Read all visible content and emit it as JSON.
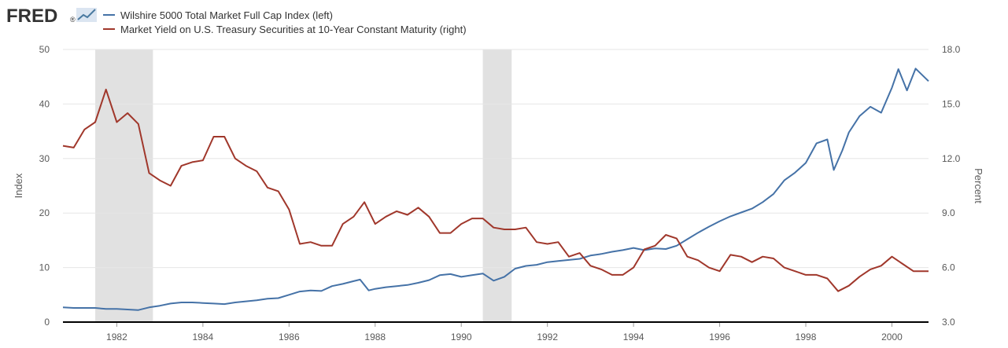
{
  "logo": {
    "text": "FRED",
    "suffix": "®"
  },
  "chart_data": {
    "type": "line",
    "title": "",
    "x_range": [
      1980.75,
      2000.85
    ],
    "x_ticks": [
      "1982",
      "1984",
      "1986",
      "1988",
      "1990",
      "1992",
      "1994",
      "1996",
      "1998",
      "2000"
    ],
    "y_left": {
      "label": "Index",
      "range": [
        0,
        50
      ],
      "ticks": [
        "0",
        "10",
        "20",
        "30",
        "40",
        "50"
      ]
    },
    "y_right": {
      "label": "Percent",
      "range": [
        3.0,
        18.0
      ],
      "ticks": [
        "3.0",
        "6.0",
        "9.0",
        "12.0",
        "15.0",
        "18.0"
      ]
    },
    "grid": true,
    "legend_position": "top-left",
    "recessions": [
      [
        1981.5,
        1982.84
      ],
      [
        1990.5,
        1991.17
      ]
    ],
    "series": [
      {
        "name": "Wilshire 5000 Total Market Full Cap Index (left)",
        "axis": "left",
        "color": "#4572a7",
        "points": [
          [
            1980.75,
            2.7
          ],
          [
            1981.0,
            2.6
          ],
          [
            1981.25,
            2.6
          ],
          [
            1981.5,
            2.6
          ],
          [
            1981.75,
            2.4
          ],
          [
            1982.0,
            2.4
          ],
          [
            1982.25,
            2.3
          ],
          [
            1982.5,
            2.2
          ],
          [
            1982.75,
            2.7
          ],
          [
            1983.0,
            3.0
          ],
          [
            1983.25,
            3.4
          ],
          [
            1983.5,
            3.6
          ],
          [
            1983.75,
            3.6
          ],
          [
            1984.0,
            3.5
          ],
          [
            1984.25,
            3.4
          ],
          [
            1984.5,
            3.3
          ],
          [
            1984.75,
            3.6
          ],
          [
            1985.0,
            3.8
          ],
          [
            1985.25,
            4.0
          ],
          [
            1985.5,
            4.3
          ],
          [
            1985.75,
            4.4
          ],
          [
            1986.0,
            5.0
          ],
          [
            1986.25,
            5.6
          ],
          [
            1986.5,
            5.8
          ],
          [
            1986.75,
            5.7
          ],
          [
            1987.0,
            6.6
          ],
          [
            1987.25,
            7.0
          ],
          [
            1987.5,
            7.5
          ],
          [
            1987.65,
            7.8
          ],
          [
            1987.85,
            5.8
          ],
          [
            1988.0,
            6.1
          ],
          [
            1988.25,
            6.4
          ],
          [
            1988.5,
            6.6
          ],
          [
            1988.75,
            6.8
          ],
          [
            1989.0,
            7.2
          ],
          [
            1989.25,
            7.7
          ],
          [
            1989.5,
            8.6
          ],
          [
            1989.75,
            8.8
          ],
          [
            1990.0,
            8.3
          ],
          [
            1990.25,
            8.6
          ],
          [
            1990.5,
            8.9
          ],
          [
            1990.75,
            7.6
          ],
          [
            1991.0,
            8.3
          ],
          [
            1991.25,
            9.8
          ],
          [
            1991.5,
            10.3
          ],
          [
            1991.75,
            10.5
          ],
          [
            1992.0,
            11.0
          ],
          [
            1992.25,
            11.2
          ],
          [
            1992.5,
            11.4
          ],
          [
            1992.75,
            11.6
          ],
          [
            1993.0,
            12.2
          ],
          [
            1993.25,
            12.5
          ],
          [
            1993.5,
            12.9
          ],
          [
            1993.75,
            13.2
          ],
          [
            1994.0,
            13.6
          ],
          [
            1994.25,
            13.2
          ],
          [
            1994.5,
            13.5
          ],
          [
            1994.75,
            13.4
          ],
          [
            1995.0,
            14.0
          ],
          [
            1995.25,
            15.2
          ],
          [
            1995.5,
            16.4
          ],
          [
            1995.75,
            17.5
          ],
          [
            1996.0,
            18.5
          ],
          [
            1996.25,
            19.4
          ],
          [
            1996.5,
            20.1
          ],
          [
            1996.75,
            20.8
          ],
          [
            1997.0,
            22.0
          ],
          [
            1997.25,
            23.5
          ],
          [
            1997.5,
            26.0
          ],
          [
            1997.75,
            27.4
          ],
          [
            1998.0,
            29.2
          ],
          [
            1998.25,
            32.8
          ],
          [
            1998.5,
            33.5
          ],
          [
            1998.65,
            27.9
          ],
          [
            1998.85,
            31.5
          ],
          [
            1999.0,
            34.8
          ],
          [
            1999.25,
            37.8
          ],
          [
            1999.5,
            39.5
          ],
          [
            1999.75,
            38.4
          ],
          [
            2000.0,
            43.0
          ],
          [
            2000.15,
            46.4
          ],
          [
            2000.35,
            42.5
          ],
          [
            2000.55,
            46.5
          ],
          [
            2000.85,
            44.2
          ]
        ]
      },
      {
        "name": "Market Yield on U.S. Treasury Securities at 10-Year Constant Maturity (right)",
        "axis": "right",
        "color": "#a0372b",
        "points": [
          [
            1980.75,
            12.7
          ],
          [
            1981.0,
            12.6
          ],
          [
            1981.25,
            13.6
          ],
          [
            1981.5,
            14.0
          ],
          [
            1981.75,
            15.8
          ],
          [
            1982.0,
            14.0
          ],
          [
            1982.25,
            14.5
          ],
          [
            1982.5,
            13.9
          ],
          [
            1982.75,
            11.2
          ],
          [
            1983.0,
            10.8
          ],
          [
            1983.25,
            10.5
          ],
          [
            1983.5,
            11.6
          ],
          [
            1983.75,
            11.8
          ],
          [
            1984.0,
            11.9
          ],
          [
            1984.25,
            13.2
          ],
          [
            1984.5,
            13.2
          ],
          [
            1984.75,
            12.0
          ],
          [
            1985.0,
            11.6
          ],
          [
            1985.25,
            11.3
          ],
          [
            1985.5,
            10.4
          ],
          [
            1985.75,
            10.2
          ],
          [
            1986.0,
            9.2
          ],
          [
            1986.25,
            7.3
          ],
          [
            1986.5,
            7.4
          ],
          [
            1986.75,
            7.2
          ],
          [
            1987.0,
            7.2
          ],
          [
            1987.25,
            8.4
          ],
          [
            1987.5,
            8.8
          ],
          [
            1987.75,
            9.6
          ],
          [
            1988.0,
            8.4
          ],
          [
            1988.25,
            8.8
          ],
          [
            1988.5,
            9.1
          ],
          [
            1988.75,
            8.9
          ],
          [
            1989.0,
            9.3
          ],
          [
            1989.25,
            8.8
          ],
          [
            1989.5,
            7.9
          ],
          [
            1989.75,
            7.9
          ],
          [
            1990.0,
            8.4
          ],
          [
            1990.25,
            8.7
          ],
          [
            1990.5,
            8.7
          ],
          [
            1990.75,
            8.2
          ],
          [
            1991.0,
            8.1
          ],
          [
            1991.25,
            8.1
          ],
          [
            1991.5,
            8.2
          ],
          [
            1991.75,
            7.4
          ],
          [
            1992.0,
            7.3
          ],
          [
            1992.25,
            7.4
          ],
          [
            1992.5,
            6.6
          ],
          [
            1992.75,
            6.8
          ],
          [
            1993.0,
            6.1
          ],
          [
            1993.25,
            5.9
          ],
          [
            1993.5,
            5.6
          ],
          [
            1993.75,
            5.6
          ],
          [
            1994.0,
            6.0
          ],
          [
            1994.25,
            7.0
          ],
          [
            1994.5,
            7.2
          ],
          [
            1994.75,
            7.8
          ],
          [
            1995.0,
            7.6
          ],
          [
            1995.25,
            6.6
          ],
          [
            1995.5,
            6.4
          ],
          [
            1995.75,
            6.0
          ],
          [
            1996.0,
            5.8
          ],
          [
            1996.25,
            6.7
          ],
          [
            1996.5,
            6.6
          ],
          [
            1996.75,
            6.3
          ],
          [
            1997.0,
            6.6
          ],
          [
            1997.25,
            6.5
          ],
          [
            1997.5,
            6.0
          ],
          [
            1997.75,
            5.8
          ],
          [
            1998.0,
            5.6
          ],
          [
            1998.25,
            5.6
          ],
          [
            1998.5,
            5.4
          ],
          [
            1998.75,
            4.7
          ],
          [
            1999.0,
            5.0
          ],
          [
            1999.25,
            5.5
          ],
          [
            1999.5,
            5.9
          ],
          [
            1999.75,
            6.1
          ],
          [
            2000.0,
            6.6
          ],
          [
            2000.25,
            6.2
          ],
          [
            2000.5,
            5.8
          ],
          [
            2000.85,
            5.8
          ]
        ]
      }
    ]
  }
}
